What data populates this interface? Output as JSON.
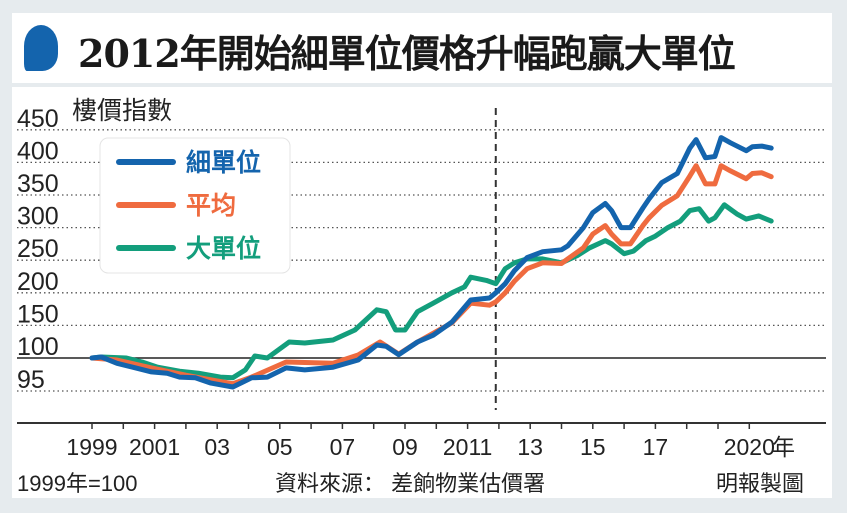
{
  "title": "2012年開始細單位價格升幅跑贏大單位",
  "chart_data": {
    "type": "line",
    "title": "2012年開始細單位價格升幅跑贏大單位",
    "ylabel": "樓價指數",
    "xlabel": "年",
    "y_ticks": [
      {
        "value": 450,
        "label": "450"
      },
      {
        "value": 400,
        "label": "400"
      },
      {
        "value": 350,
        "label": "350"
      },
      {
        "value": 300,
        "label": "300"
      },
      {
        "value": 250,
        "label": "250"
      },
      {
        "value": 200,
        "label": "200"
      },
      {
        "value": 150,
        "label": "150"
      },
      {
        "value": 100,
        "label": "100"
      },
      {
        "value": 95,
        "label": "95"
      }
    ],
    "x_ticks": [
      {
        "value": 1999,
        "label": "1999"
      },
      {
        "value": 2001,
        "label": "2001"
      },
      {
        "value": 2003,
        "label": "03"
      },
      {
        "value": 2005,
        "label": "05"
      },
      {
        "value": 2007,
        "label": "07"
      },
      {
        "value": 2009,
        "label": "09"
      },
      {
        "value": 2011,
        "label": "2011"
      },
      {
        "value": 2013,
        "label": "13"
      },
      {
        "value": 2015,
        "label": "15"
      },
      {
        "value": 2017,
        "label": "17"
      },
      {
        "value": 2020,
        "label": "2020"
      }
    ],
    "xlim": [
      1999,
      2020
    ],
    "marker_line_year": 2011.9,
    "grid": true,
    "legend_position": "top-left",
    "series": [
      {
        "name": "細單位",
        "color": "#1464ad",
        "points": [
          [
            1999,
            100
          ],
          [
            1999.3,
            101.5
          ],
          [
            1999.8,
            99.2
          ],
          [
            2000.3,
            98.6
          ],
          [
            2000.9,
            97.9
          ],
          [
            2001.4,
            97.7
          ],
          [
            2001.8,
            97.1
          ],
          [
            2002.3,
            97
          ],
          [
            2002.8,
            96.2
          ],
          [
            2003.5,
            95.6
          ],
          [
            2004.1,
            97
          ],
          [
            2004.6,
            97.1
          ],
          [
            2005.2,
            98.5
          ],
          [
            2005.8,
            98.2
          ],
          [
            2006.7,
            98.6
          ],
          [
            2007.5,
            99.7
          ],
          [
            2008.1,
            120
          ],
          [
            2008.4,
            118
          ],
          [
            2008.8,
            105
          ],
          [
            2009.4,
            124.5
          ],
          [
            2009.9,
            135
          ],
          [
            2010.5,
            155
          ],
          [
            2011.1,
            189
          ],
          [
            2011.7,
            192
          ],
          [
            2011.9,
            200
          ],
          [
            2012.2,
            214
          ],
          [
            2012.5,
            234
          ],
          [
            2012.9,
            254
          ],
          [
            2013.4,
            263
          ],
          [
            2014.0,
            266
          ],
          [
            2014.2,
            272
          ],
          [
            2014.7,
            300
          ],
          [
            2015.0,
            323
          ],
          [
            2015.4,
            337
          ],
          [
            2015.6,
            326
          ],
          [
            2015.9,
            300
          ],
          [
            2016.2,
            300
          ],
          [
            2016.6,
            330
          ],
          [
            2016.8,
            344
          ],
          [
            2017.2,
            369
          ],
          [
            2017.7,
            383
          ],
          [
            2018.1,
            422
          ],
          [
            2018.3,
            435
          ],
          [
            2018.6,
            407
          ],
          [
            2018.9,
            409
          ],
          [
            2019.1,
            438
          ],
          [
            2019.4,
            430
          ],
          [
            2019.9,
            418
          ],
          [
            2020.1,
            424
          ],
          [
            2020.4,
            425
          ],
          [
            2020.7,
            422
          ]
        ]
      },
      {
        "name": "平均",
        "color": "#ef6b3f",
        "points": [
          [
            1999,
            100
          ],
          [
            1999.8,
            99.7
          ],
          [
            2000.9,
            98.5
          ],
          [
            2002.0,
            97.4
          ],
          [
            2002.8,
            96.7
          ],
          [
            2003.5,
            96.1
          ],
          [
            2004.1,
            97.1
          ],
          [
            2005.2,
            99.4
          ],
          [
            2006.7,
            99.2
          ],
          [
            2007.5,
            104.6
          ],
          [
            2008.2,
            124.5
          ],
          [
            2008.8,
            106
          ],
          [
            2009.4,
            124.5
          ],
          [
            2010.5,
            154
          ],
          [
            2011.1,
            184
          ],
          [
            2011.7,
            181
          ],
          [
            2011.9,
            186
          ],
          [
            2012.2,
            200
          ],
          [
            2012.5,
            218
          ],
          [
            2012.9,
            237
          ],
          [
            2013.4,
            246
          ],
          [
            2014.0,
            245
          ],
          [
            2014.2,
            252
          ],
          [
            2014.7,
            269
          ],
          [
            2015.0,
            290
          ],
          [
            2015.4,
            303
          ],
          [
            2015.6,
            290
          ],
          [
            2015.9,
            275
          ],
          [
            2016.2,
            275
          ],
          [
            2016.6,
            303
          ],
          [
            2016.8,
            315
          ],
          [
            2017.2,
            334
          ],
          [
            2017.7,
            349
          ],
          [
            2018.1,
            379
          ],
          [
            2018.3,
            395
          ],
          [
            2018.6,
            367
          ],
          [
            2018.9,
            367
          ],
          [
            2019.1,
            395
          ],
          [
            2019.4,
            387
          ],
          [
            2019.9,
            375
          ],
          [
            2020.1,
            383
          ],
          [
            2020.4,
            384
          ],
          [
            2020.7,
            378
          ]
        ]
      },
      {
        "name": "大單位",
        "color": "#139e7c",
        "points": [
          [
            1999,
            100
          ],
          [
            1999.3,
            101.5
          ],
          [
            2000.1,
            100
          ],
          [
            2000.6,
            99.4
          ],
          [
            2001.1,
            98.6
          ],
          [
            2001.8,
            98
          ],
          [
            2002.4,
            97.7
          ],
          [
            2003.1,
            97.1
          ],
          [
            2003.5,
            97
          ],
          [
            2003.9,
            98.2
          ],
          [
            2004.2,
            103
          ],
          [
            2004.6,
            100
          ],
          [
            2005.3,
            124.5
          ],
          [
            2005.8,
            123
          ],
          [
            2006.7,
            127.6
          ],
          [
            2007.4,
            143
          ],
          [
            2008.1,
            174
          ],
          [
            2008.4,
            171
          ],
          [
            2008.7,
            143
          ],
          [
            2009.0,
            143
          ],
          [
            2009.4,
            171
          ],
          [
            2009.9,
            184
          ],
          [
            2010.5,
            200
          ],
          [
            2010.9,
            209
          ],
          [
            2011.1,
            224
          ],
          [
            2011.6,
            219
          ],
          [
            2011.9,
            214
          ],
          [
            2012.2,
            237
          ],
          [
            2012.5,
            246
          ],
          [
            2012.9,
            252
          ],
          [
            2013.4,
            252
          ],
          [
            2014.0,
            246
          ],
          [
            2014.5,
            257
          ],
          [
            2014.9,
            269
          ],
          [
            2015.4,
            280
          ],
          [
            2015.6,
            275
          ],
          [
            2016.0,
            260
          ],
          [
            2016.3,
            264
          ],
          [
            2016.7,
            280
          ],
          [
            2017.0,
            287
          ],
          [
            2017.4,
            300
          ],
          [
            2017.8,
            310
          ],
          [
            2018.1,
            326
          ],
          [
            2018.4,
            329
          ],
          [
            2018.7,
            310
          ],
          [
            2018.9,
            315
          ],
          [
            2019.2,
            335
          ],
          [
            2019.6,
            321
          ],
          [
            2019.9,
            313
          ],
          [
            2020.3,
            318
          ],
          [
            2020.7,
            310
          ]
        ]
      }
    ],
    "notes": {
      "base": "1999年=100",
      "source": "資料來源： 差餉物業估價署",
      "credit": "明報製圖"
    }
  }
}
